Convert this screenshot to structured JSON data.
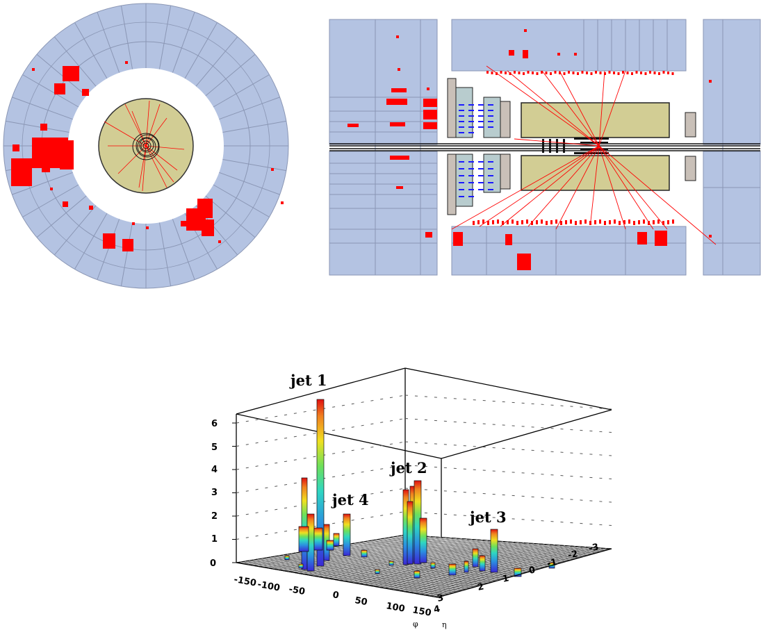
{
  "colors": {
    "calorimeter": "#b4c3e2",
    "deposit": "#ff0000",
    "track": "#ff0000",
    "tracker_barrel": "#d2cd94",
    "muon_chamber": "#c9c0b8",
    "hit": "#1a1aff",
    "lego_grid": "#202020"
  },
  "views": {
    "transverse": {
      "name": "rphi-view"
    },
    "longitudinal": {
      "name": "rz-view"
    }
  },
  "chart_data": {
    "type": "lego",
    "z_ticks": [
      "0",
      "1",
      "2",
      "3",
      "4",
      "5",
      "6"
    ],
    "phi_ticks": [
      "-150",
      "-100",
      "-50",
      "0",
      "50",
      "100",
      "150"
    ],
    "eta_ticks": [
      "4",
      "3",
      "2",
      "1",
      "0",
      "-1",
      "-2",
      "-3"
    ],
    "phi_axis_label": "φ",
    "eta_axis_label": "η",
    "annotations": [
      {
        "text": "jet 1"
      },
      {
        "text": "jet 2"
      },
      {
        "text": "jet 3"
      },
      {
        "text": "jet 4"
      }
    ]
  }
}
